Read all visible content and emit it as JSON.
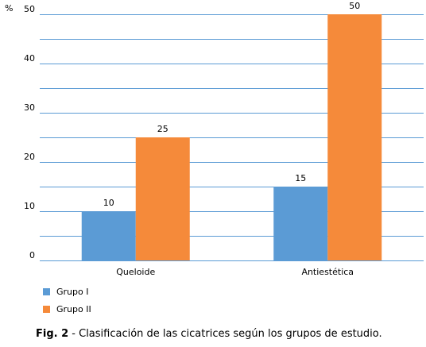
{
  "chart_data": {
    "type": "bar",
    "ylabel": "%",
    "ylim": [
      0,
      50
    ],
    "yticks": [
      0,
      10,
      20,
      30,
      40,
      50
    ],
    "minor_grid_step": 5,
    "grid": true,
    "categories": [
      "Queloide",
      "Antiestética"
    ],
    "series": [
      {
        "name": "Grupo I",
        "values": [
          10,
          15
        ],
        "color": "#5b9bd5"
      },
      {
        "name": "Grupo II",
        "values": [
          25,
          50
        ],
        "color": "#f58a3a"
      }
    ],
    "legend_placement": "bottom-left"
  },
  "grid_color": "#5b9bd5",
  "caption": {
    "lead": "Fig. 2",
    "text": " - Clasificación de las cicatrices según los grupos de estudio."
  }
}
